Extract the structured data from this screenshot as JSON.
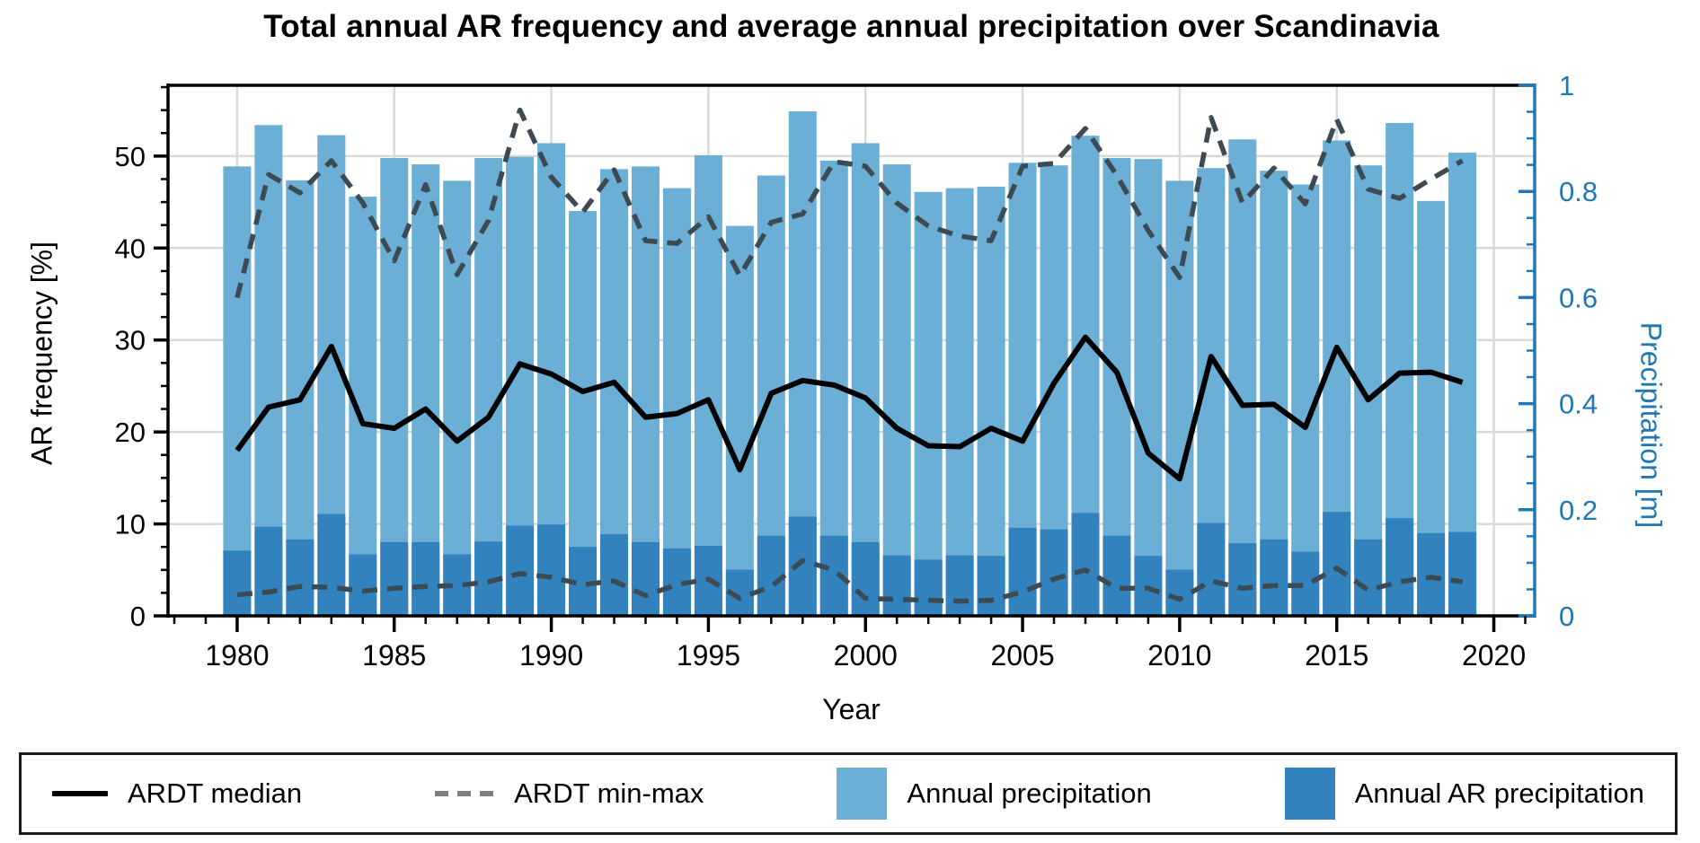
{
  "title": "Total annual AR frequency and average annual precipitation over Scandinavia",
  "axes": {
    "x": {
      "label": "Year",
      "min": 1977.8,
      "max": 2021.3,
      "major_ticks": [
        1980,
        1985,
        1990,
        1995,
        2000,
        2005,
        2010,
        2015,
        2020
      ],
      "minor_step": 1
    },
    "y_left": {
      "label": "AR frequency [%]",
      "min": 0,
      "max": 57.7,
      "major_ticks": [
        0,
        10,
        20,
        30,
        40,
        50
      ],
      "minor_step": 2.5,
      "color": "#000000"
    },
    "y_right": {
      "label": "Precipitation [m]",
      "min": 0,
      "max": 1,
      "major_ticks": [
        0,
        0.2,
        0.4,
        0.6,
        0.8,
        1
      ],
      "minor_step": 0.05,
      "color": "#1f77b4"
    }
  },
  "colors": {
    "annual_precipitation": "#6baed6",
    "annual_ar_precipitation": "#3182bd",
    "median_line": "#000000",
    "minmax_line": "#3c4a54",
    "legend_dash": "#7f7f7f",
    "grid": "#d9d9d9",
    "spine": "#000000",
    "right_axis": "#1f77b4"
  },
  "legend": {
    "items": [
      {
        "label": "ARDT median",
        "sample": "solid-line"
      },
      {
        "label": "ARDT min-max",
        "sample": "dashed-line"
      },
      {
        "label": "Annual precipitation",
        "sample": "light-swatch"
      },
      {
        "label": "Annual AR precipitation",
        "sample": "dark-swatch"
      }
    ]
  },
  "chart_data": {
    "type": "bar",
    "title": "Total annual AR frequency and average annual precipitation over Scandinavia",
    "xlabel": "Year",
    "ylabel_left": "AR frequency [%]",
    "ylabel_right": "Precipitation [m]",
    "x": [
      1980,
      1981,
      1982,
      1983,
      1984,
      1985,
      1986,
      1987,
      1988,
      1989,
      1990,
      1991,
      1992,
      1993,
      1994,
      1995,
      1996,
      1997,
      1998,
      1999,
      2000,
      2001,
      2002,
      2003,
      2004,
      2005,
      2006,
      2007,
      2008,
      2009,
      2010,
      2011,
      2012,
      2013,
      2014,
      2015,
      2016,
      2017,
      2018,
      2019
    ],
    "xlim": [
      1977.8,
      2021.3
    ],
    "ylim_left": [
      0,
      57.7
    ],
    "ylim_right": [
      0,
      1
    ],
    "grid": true,
    "legend_position": "bottom",
    "series": [
      {
        "name": "Annual precipitation",
        "type": "bar",
        "axis": "right",
        "unit": "m",
        "values": [
          0.847,
          0.925,
          0.821,
          0.906,
          0.79,
          0.863,
          0.851,
          0.82,
          0.863,
          0.865,
          0.891,
          0.763,
          0.842,
          0.847,
          0.806,
          0.868,
          0.735,
          0.83,
          0.951,
          0.858,
          0.891,
          0.851,
          0.799,
          0.806,
          0.809,
          0.854,
          0.849,
          0.905,
          0.863,
          0.861,
          0.82,
          0.844,
          0.898,
          0.839,
          0.813,
          0.896,
          0.849,
          0.929,
          0.782,
          0.873
        ]
      },
      {
        "name": "Annual AR precipitation",
        "type": "bar",
        "axis": "right",
        "unit": "m",
        "values": [
          0.123,
          0.168,
          0.144,
          0.192,
          0.116,
          0.139,
          0.139,
          0.116,
          0.14,
          0.17,
          0.172,
          0.13,
          0.154,
          0.139,
          0.127,
          0.132,
          0.087,
          0.151,
          0.187,
          0.151,
          0.139,
          0.114,
          0.106,
          0.114,
          0.113,
          0.166,
          0.163,
          0.194,
          0.151,
          0.113,
          0.087,
          0.175,
          0.137,
          0.144,
          0.121,
          0.196,
          0.144,
          0.184,
          0.156,
          0.158
        ]
      },
      {
        "name": "ARDT median",
        "type": "line",
        "axis": "left",
        "unit": "%",
        "values": [
          18.0,
          22.7,
          23.5,
          29.3,
          20.9,
          20.4,
          22.5,
          19.0,
          21.6,
          27.4,
          26.3,
          24.4,
          25.4,
          21.6,
          22.0,
          23.5,
          15.9,
          24.2,
          25.6,
          25.1,
          23.7,
          20.4,
          18.5,
          18.4,
          20.4,
          19.0,
          25.3,
          30.3,
          26.5,
          17.7,
          14.9,
          28.2,
          22.9,
          23.0,
          20.5,
          29.2,
          23.5,
          26.4,
          26.5,
          25.4
        ]
      },
      {
        "name": "ARDT max",
        "type": "dashed-line",
        "axis": "left",
        "unit": "%",
        "values": [
          34.6,
          48.0,
          46.0,
          49.5,
          44.9,
          38.6,
          46.9,
          37.1,
          43.0,
          55.0,
          47.7,
          43.9,
          48.5,
          40.8,
          40.5,
          43.4,
          37.0,
          42.8,
          43.7,
          49.4,
          48.9,
          44.9,
          42.4,
          41.3,
          40.8,
          48.9,
          49.2,
          53.0,
          47.9,
          41.9,
          36.8,
          54.2,
          44.9,
          48.7,
          44.8,
          54.0,
          46.4,
          45.4,
          47.5,
          49.5
        ]
      },
      {
        "name": "ARDT min",
        "type": "dashed-line",
        "axis": "left",
        "unit": "%",
        "values": [
          2.3,
          2.6,
          3.2,
          3.1,
          2.7,
          3.0,
          3.2,
          3.3,
          3.7,
          4.6,
          4.2,
          3.4,
          3.8,
          2.2,
          3.4,
          4.0,
          1.9,
          3.2,
          6.0,
          5.0,
          1.9,
          1.8,
          1.7,
          1.6,
          1.7,
          2.6,
          4.0,
          5.0,
          3.0,
          3.0,
          1.8,
          3.8,
          3.0,
          3.3,
          3.3,
          5.2,
          2.8,
          3.7,
          4.2,
          3.7
        ]
      }
    ]
  }
}
